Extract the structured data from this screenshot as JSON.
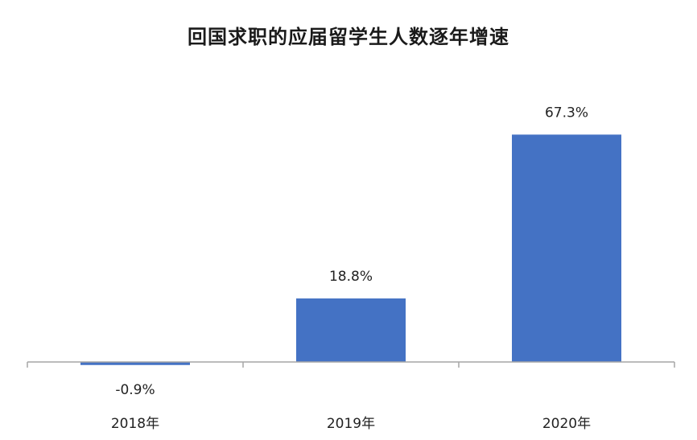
{
  "chart_data": {
    "type": "bar",
    "title": "回国求职的应届留学生人数逐年增速",
    "categories": [
      "2018年",
      "2019年",
      "2020年"
    ],
    "values": [
      -0.9,
      18.8,
      67.3
    ],
    "data_labels": [
      "-0.9%",
      "18.8%",
      "67.3%"
    ],
    "xlabel": "",
    "ylabel": "",
    "grid": false,
    "legend": "none",
    "bar_color": "#4472C4",
    "axis_color": "#a6a6a6"
  }
}
